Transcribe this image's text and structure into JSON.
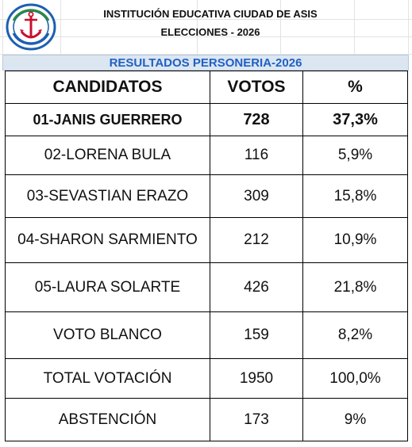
{
  "header": {
    "institution": "INSTITUCIÓN EDUCATIVA CIUDAD DE ASIS",
    "subtitle": "ELECCIONES - 2026"
  },
  "logo": {
    "icon": "anchor-crest-icon",
    "colors": {
      "blue": "#1d5fb0",
      "red": "#c8102e",
      "green": "#2e8b3a"
    }
  },
  "banner": "RESULTADOS PERSONERIA-2026",
  "table": {
    "columns": [
      "CANDIDATOS",
      "VOTOS",
      "%"
    ],
    "rows": [
      {
        "name": "01-JANIS GUERRERO",
        "votes": "728",
        "pct": "37,3%"
      },
      {
        "name": "02-LORENA BULA",
        "votes": "116",
        "pct": "5,9%"
      },
      {
        "name": "03-SEVASTIAN ERAZO",
        "votes": "309",
        "pct": "15,8%"
      },
      {
        "name": "04-SHARON SARMIENTO",
        "votes": "212",
        "pct": "10,9%"
      },
      {
        "name": "05-LAURA SOLARTE",
        "votes": "426",
        "pct": "21,8%"
      },
      {
        "name": "VOTO BLANCO",
        "votes": "159",
        "pct": "8,2%"
      },
      {
        "name": "TOTAL VOTACIÓN",
        "votes": "1950",
        "pct": "100,0%"
      },
      {
        "name": "ABSTENCIÓN",
        "votes": "173",
        "pct": "9%"
      }
    ]
  },
  "colors": {
    "banner_bg": "#dce6f1",
    "banner_text": "#1f60c4"
  }
}
